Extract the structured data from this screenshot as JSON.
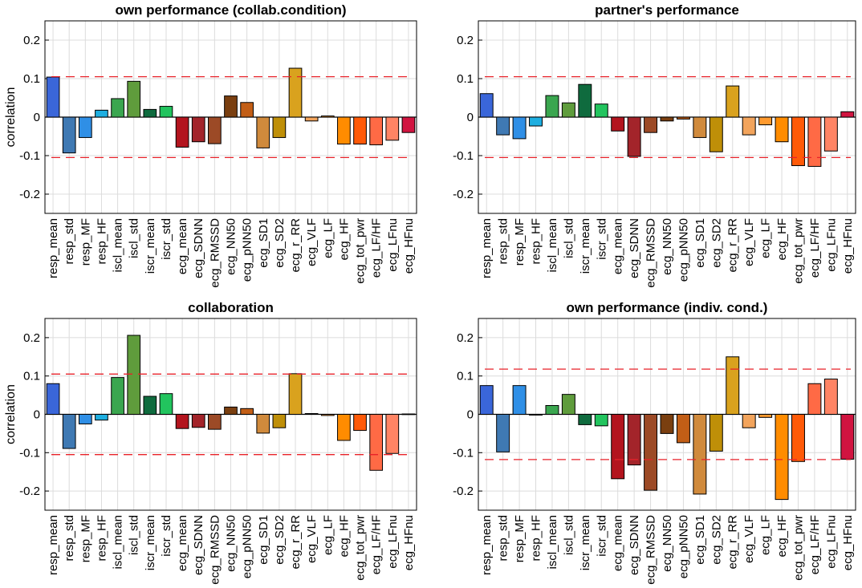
{
  "figure": {
    "ylabel": "correlation",
    "categories": [
      "resp_mean",
      "resp_std",
      "resp_MF",
      "resp_HF",
      "iscl_mean",
      "iscl_std",
      "iscr_mean",
      "iscr_std",
      "ecg_mean",
      "ecg_SDNN",
      "ecg_RMSSD",
      "ecg_NN50",
      "ecg_pNN50",
      "ecg_SD1",
      "ecg_SD2",
      "ecg_r_RR",
      "ecg_VLF",
      "ecg_LF",
      "ecg_HF",
      "ecg_tot_pwr",
      "ecg_LF/HF",
      "ecg_LFnu",
      "ecg_HFnu"
    ],
    "colors": [
      "#3a66d9",
      "#3f79b3",
      "#2f8fe6",
      "#1eaee0",
      "#3aa64f",
      "#5f9c3c",
      "#0f6b3e",
      "#22c45e",
      "#b3141e",
      "#a3242a",
      "#9c4a26",
      "#7a3f10",
      "#c25e16",
      "#d08a3c",
      "#bf8f08",
      "#d9a21e",
      "#f2a45c",
      "#ff9a2e",
      "#ff8c00",
      "#ff5a08",
      "#ff6a45",
      "#ff8464",
      "#d11440"
    ],
    "yticks": [
      "-0.2",
      "-0.1",
      "0",
      "0.1",
      "0.2"
    ],
    "category_labels_display": [
      "resp_mean",
      "resp_std",
      "resp_MF",
      "resp_HF",
      "iscl_mean",
      "iscl_std",
      "iscr_mean",
      "iscr_std",
      "ecg_mean",
      "ecg_SDNN",
      "ecg_RMSSD",
      "ecg_NN50",
      "ecg_pNN50",
      "ecg_SD1",
      "ecg_SD2",
      "ecg_r_RR",
      "ecg_VLF",
      "ecg_LF",
      "ecg_HF",
      "ecg_tot_pwr",
      "ecg_LF/HF",
      "ecg_LFnu",
      "ecg_HFnu"
    ]
  },
  "chart_data": [
    {
      "type": "bar",
      "title": "own performance (collab.condition)",
      "ylabel": "correlation",
      "ylim": [
        -0.25,
        0.25
      ],
      "grid": true,
      "significance_threshold": 0.105,
      "values": [
        0.104,
        -0.093,
        -0.053,
        0.018,
        0.048,
        0.093,
        0.02,
        0.028,
        -0.078,
        -0.064,
        -0.069,
        0.055,
        0.038,
        -0.08,
        -0.053,
        0.127,
        -0.01,
        0.003,
        -0.07,
        -0.07,
        -0.072,
        -0.06,
        -0.04
      ]
    },
    {
      "type": "bar",
      "title": "partner's performance",
      "ylabel": "",
      "ylim": [
        -0.25,
        0.25
      ],
      "grid": true,
      "significance_threshold": 0.105,
      "values": [
        0.061,
        -0.046,
        -0.056,
        -0.023,
        0.056,
        0.037,
        0.085,
        0.034,
        -0.036,
        -0.102,
        -0.04,
        -0.01,
        -0.005,
        -0.053,
        -0.09,
        0.081,
        -0.046,
        -0.02,
        -0.064,
        -0.126,
        -0.128,
        -0.088,
        0.014
      ]
    },
    {
      "type": "bar",
      "title": "collaboration",
      "ylabel": "correlation",
      "ylim": [
        -0.25,
        0.25
      ],
      "grid": true,
      "significance_threshold": 0.105,
      "values": [
        0.08,
        -0.089,
        -0.025,
        -0.015,
        0.096,
        0.206,
        0.047,
        0.054,
        -0.037,
        -0.034,
        -0.039,
        0.019,
        0.015,
        -0.049,
        -0.035,
        0.106,
        0.002,
        -0.003,
        -0.068,
        -0.042,
        -0.146,
        -0.102,
        0.001
      ]
    },
    {
      "type": "bar",
      "title": "own performance (indiv. cond.)",
      "ylabel": "",
      "ylim": [
        -0.25,
        0.25
      ],
      "grid": true,
      "significance_threshold": 0.118,
      "values": [
        0.075,
        -0.098,
        0.075,
        -0.002,
        0.023,
        0.052,
        -0.027,
        -0.03,
        -0.168,
        -0.132,
        -0.198,
        -0.05,
        -0.074,
        -0.208,
        -0.096,
        0.15,
        -0.035,
        -0.008,
        -0.222,
        -0.123,
        0.08,
        0.092,
        -0.117
      ]
    }
  ]
}
